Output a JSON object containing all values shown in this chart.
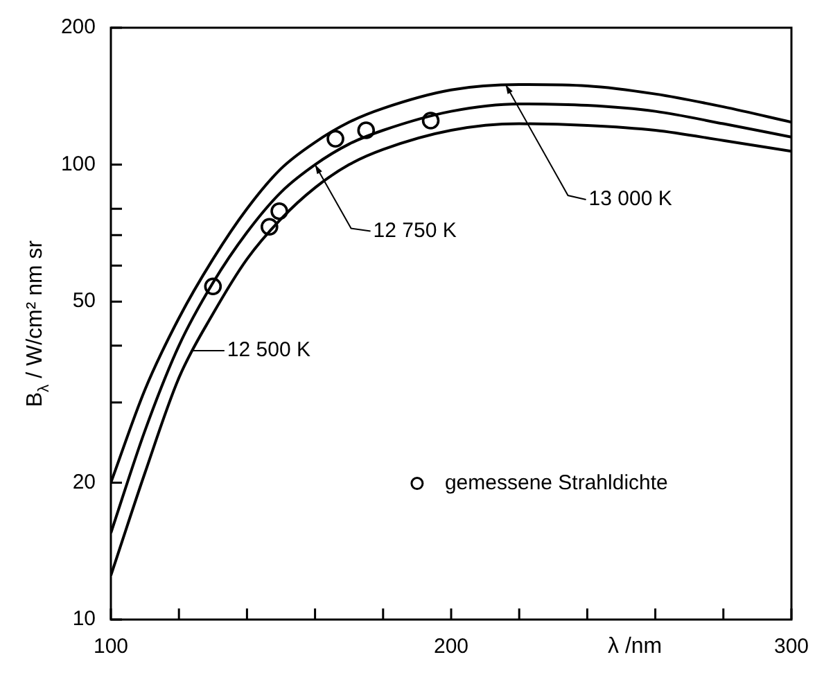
{
  "chart_data": {
    "type": "line",
    "xlabel": "λ /nm",
    "ylabel": "B$_{λ}$ / W/cm² nm sr",
    "log": "y",
    "xlim": [
      100,
      300
    ],
    "ylim": [
      10,
      200
    ],
    "xticks": [
      100,
      {
        "value": 120,
        "label": null
      },
      {
        "value": 140,
        "label": null
      },
      {
        "value": 160,
        "label": null
      },
      {
        "value": 180,
        "label": null
      },
      200,
      {
        "value": 220,
        "label": null
      },
      {
        "value": 240,
        "label": null
      },
      {
        "value": 260,
        "label": null
      },
      {
        "value": 280,
        "label": null
      },
      300
    ],
    "yticks": [
      10,
      20,
      {
        "value": 30,
        "label": null
      },
      {
        "value": 40,
        "label": null
      },
      50,
      {
        "value": 60,
        "label": null
      },
      {
        "value": 70,
        "label": null
      },
      {
        "value": 80,
        "label": null
      },
      100,
      200
    ],
    "x": [
      100,
      110,
      120,
      130,
      140,
      150,
      160,
      170,
      180,
      200,
      220,
      240,
      260,
      280,
      300
    ],
    "series": [
      {
        "color": "#000000",
        "values": [
          20,
          32,
          46,
          62,
          80,
          98,
          112,
          124,
          133,
          146,
          150,
          149,
          143,
          134,
          124
        ]
      },
      {
        "color": "#000000",
        "values": [
          15.5,
          26,
          40,
          55,
          71,
          87,
          100,
          111,
          119,
          131,
          136,
          135,
          131,
          123,
          115
        ]
      },
      {
        "color": "#000000",
        "values": [
          12.5,
          21,
          34,
          47,
          62,
          76,
          89,
          100,
          108,
          119,
          123,
          122,
          119,
          113,
          107
        ]
      },
      {
        "type": "scatter",
        "name": "gemessene Strahldichte",
        "color": "#000000",
        "x": [
          130,
          146.6,
          149.5,
          166,
          175,
          194
        ],
        "values": [
          54,
          73,
          79,
          114,
          119,
          125
        ]
      }
    ],
    "annotations": [
      {
        "text": "13 000 K",
        "x": 216,
        "y": 150
      },
      {
        "text": "12 750 K",
        "x": 160,
        "y": 100
      },
      {
        "text": "12 500 K",
        "x": 124,
        "y": 39
      }
    ],
    "legend": "bottom right"
  }
}
